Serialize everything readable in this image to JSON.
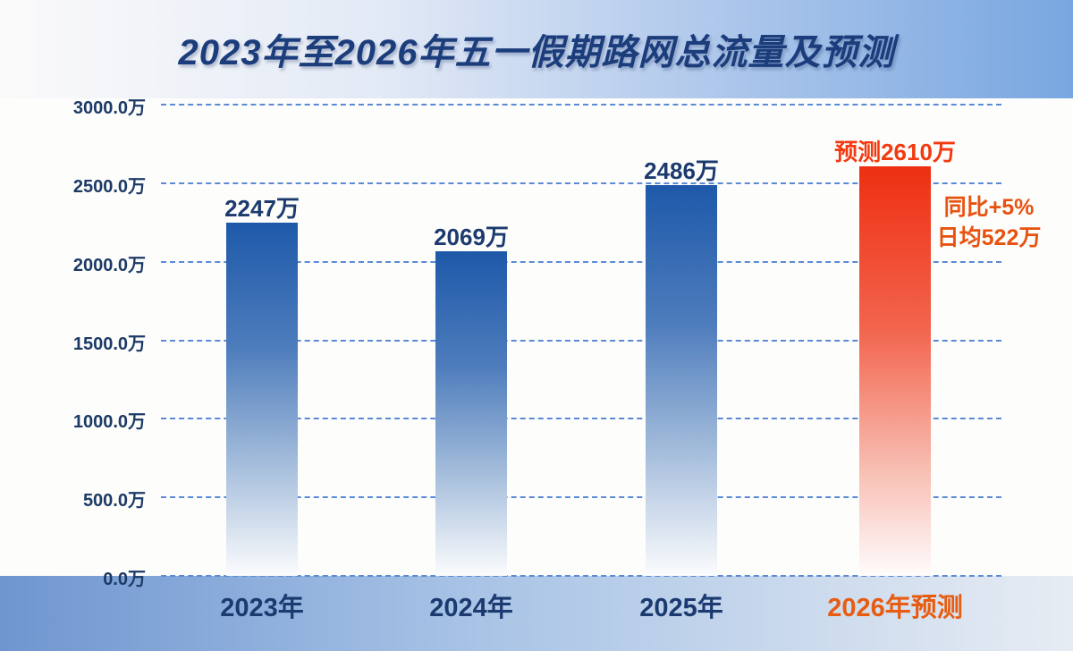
{
  "title": "2023年至2026年五一假期路网总流量及预测",
  "chart_data": {
    "type": "bar",
    "title": "2023年至2026年五一假期路网总流量及预测",
    "unit": "万",
    "xlabel": "",
    "ylabel": "",
    "ylim": [
      0,
      3000
    ],
    "ytick_step": 500,
    "yticks": [
      "0.0万",
      "500.0万",
      "1000.0万",
      "1500.0万",
      "2000.0万",
      "2500.0万",
      "3000.0万"
    ],
    "grid": "dashed horizontal",
    "legend": "none",
    "categories": [
      "2023年",
      "2024年",
      "2025年",
      "2026年预测"
    ],
    "values": [
      2247,
      2069,
      2486,
      2610
    ],
    "bars": [
      {
        "category": "2023年",
        "value": 2247,
        "label": "2247万",
        "kind": "actual"
      },
      {
        "category": "2024年",
        "value": 2069,
        "label": "2069万",
        "kind": "actual"
      },
      {
        "category": "2025年",
        "value": 2486,
        "label": "2486万",
        "kind": "actual"
      },
      {
        "category": "2026年预测",
        "value": 2610,
        "label": "预测2610万",
        "kind": "forecast"
      }
    ],
    "annotation": [
      "同比+5%",
      "日均522万"
    ],
    "colors": {
      "bar_actual_top": "#1e59a9",
      "bar_forecast_top": "#ee2f12",
      "gridline": "#5b8ad5",
      "title_text": "#1c3d7c",
      "tick_text": "#1c3a66",
      "bar_label_actual": "#1c3a6e",
      "bar_label_forecast": "#f23a10",
      "annotation_text": "#e8520f",
      "xlabel_forecast": "#e85c12"
    }
  }
}
